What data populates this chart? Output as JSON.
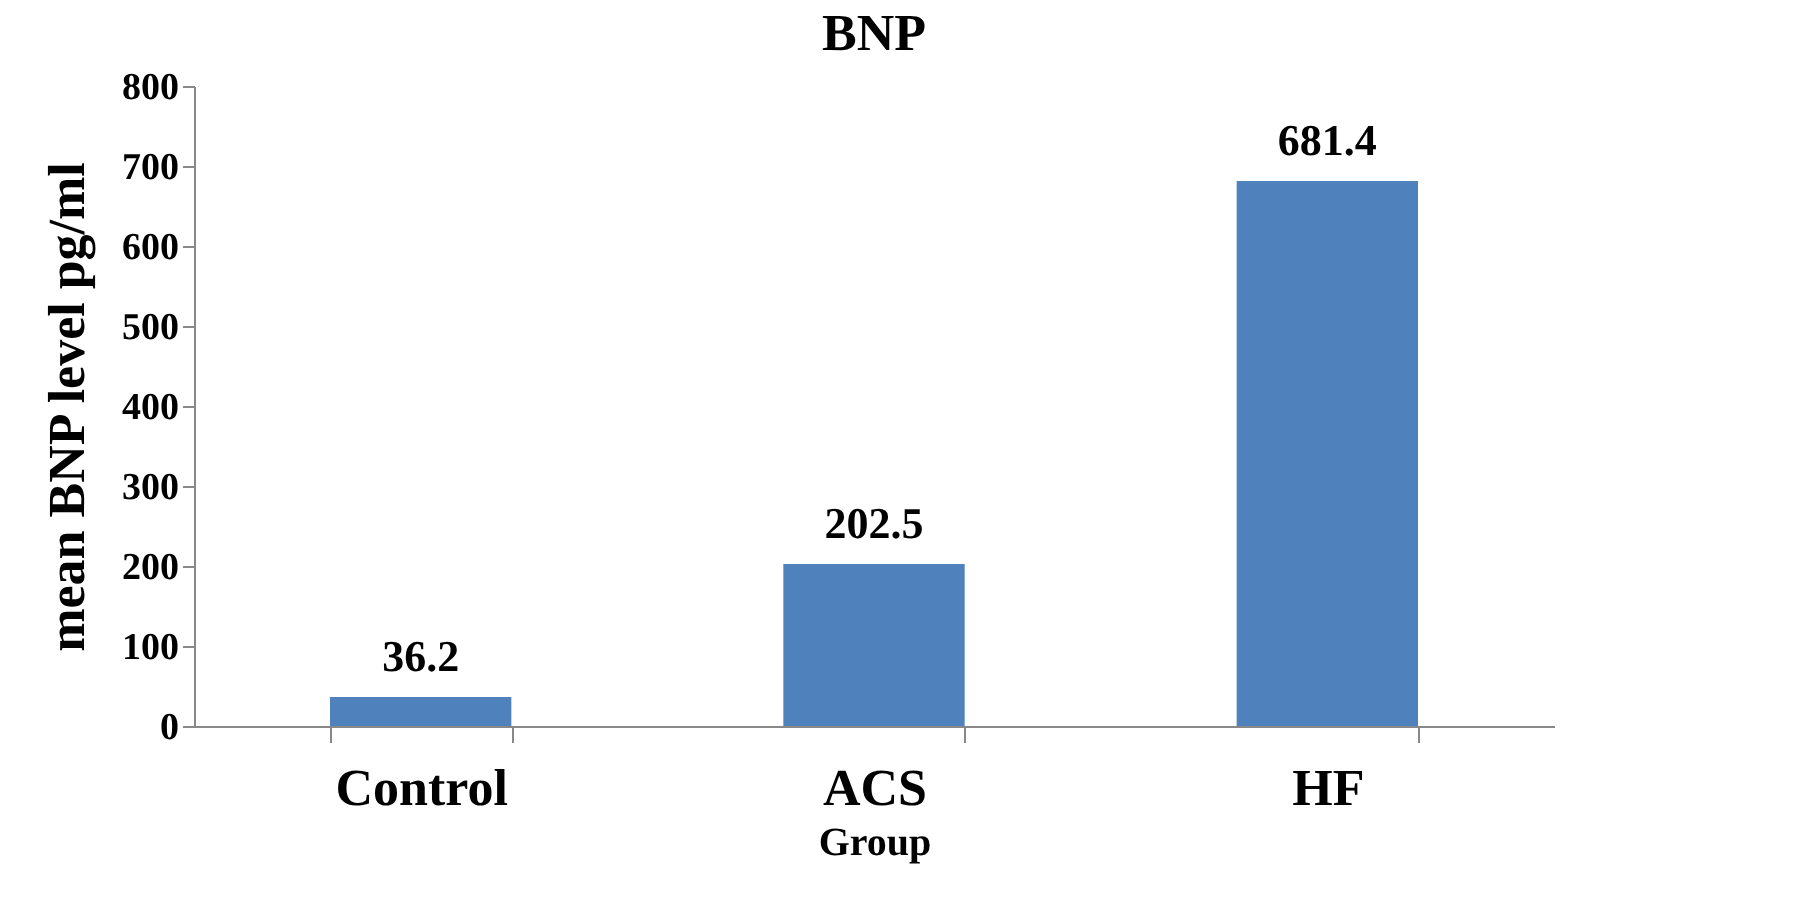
{
  "chart_data": {
    "type": "bar",
    "title": "BNP",
    "xlabel": "Group",
    "ylabel": "mean BNP level pg/ml",
    "categories": [
      "Control",
      "ACS",
      "HF"
    ],
    "values": [
      36.2,
      202.5,
      681.4
    ],
    "color": "#4f81bd",
    "ylim": [
      0,
      800
    ],
    "yticks": [
      0,
      100,
      200,
      300,
      400,
      500,
      600,
      700,
      800
    ],
    "data_labels": true,
    "grid": false
  }
}
